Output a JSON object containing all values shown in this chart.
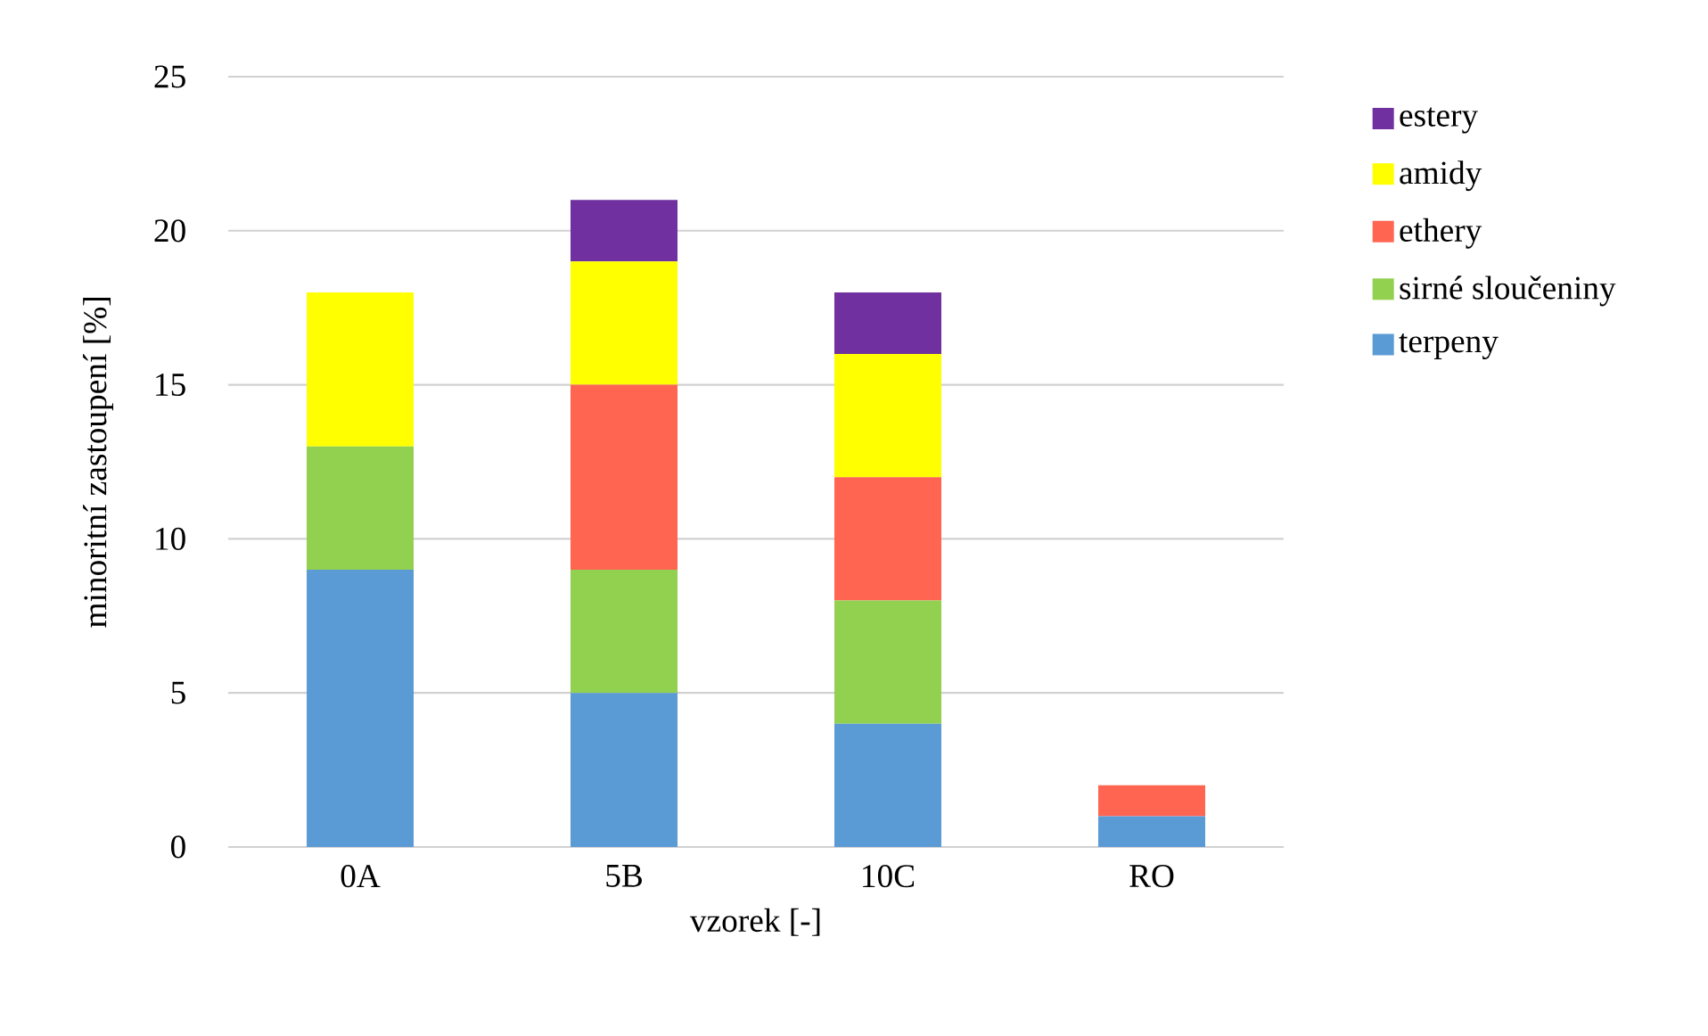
{
  "chart_data": {
    "type": "bar",
    "stacked": true,
    "xlabel": "vzorek [-]",
    "ylabel": "minoritní zastoupení [%]",
    "categories": [
      "0A",
      "5B",
      "10C",
      "RO"
    ],
    "series": [
      {
        "name": "terpeny",
        "color": "#5b9bd5",
        "values": [
          9,
          5,
          4,
          1
        ]
      },
      {
        "name": "sirné sloučeniny",
        "color": "#92d050",
        "values": [
          4,
          4,
          4,
          0
        ]
      },
      {
        "name": "ethery",
        "color": "#ff6550",
        "values": [
          0,
          6,
          4,
          1
        ]
      },
      {
        "name": "amidy",
        "color": "#ffff00",
        "values": [
          5,
          4,
          4,
          0
        ]
      },
      {
        "name": "estery",
        "color": "#7030a0",
        "values": [
          0,
          2,
          2,
          0
        ]
      }
    ],
    "ylim": [
      0,
      25
    ],
    "yticks": [
      0,
      5,
      10,
      15,
      20,
      25
    ],
    "grid": "y",
    "legend": "right"
  }
}
